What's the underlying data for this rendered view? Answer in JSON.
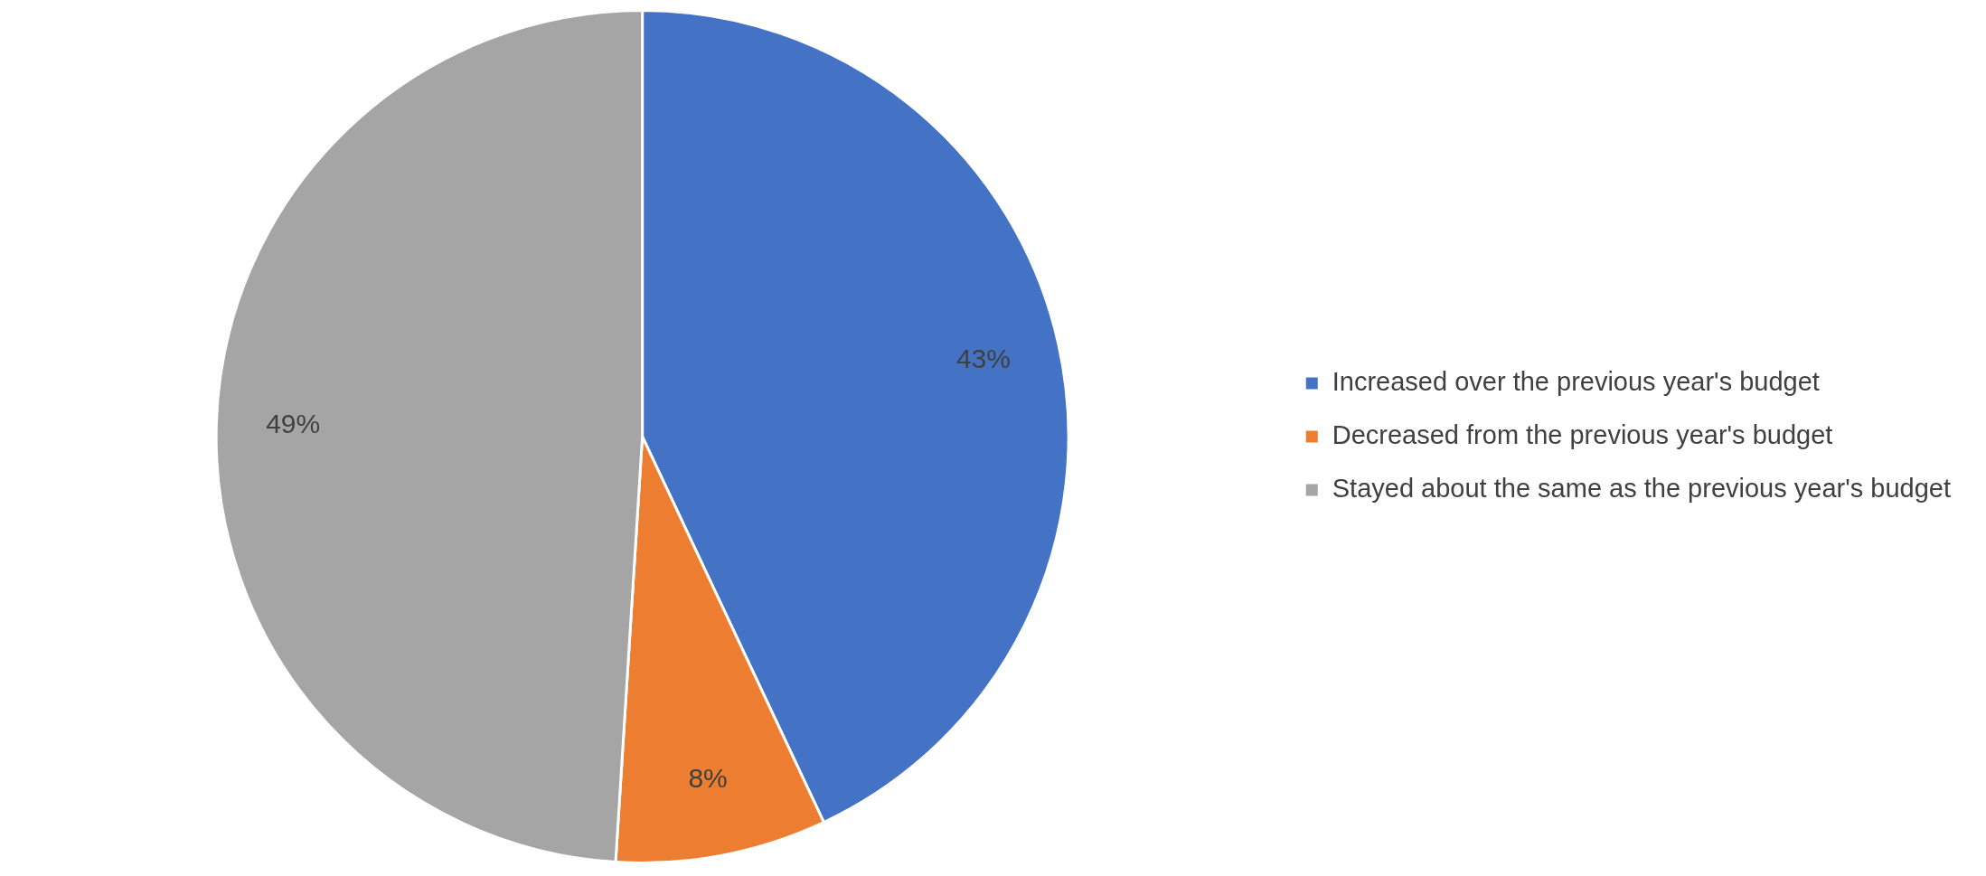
{
  "chart_data": {
    "type": "pie",
    "categories": [
      "Increased over the previous year's budget",
      "Decreased from the previous year's budget",
      "Stayed about the same as the previous year's budget"
    ],
    "values": [
      43,
      8,
      49
    ],
    "colors": [
      "#4472c4",
      "#ed7d31",
      "#a5a5a5"
    ],
    "value_labels": [
      "43%",
      "8%",
      "49%"
    ],
    "legend": "right"
  }
}
